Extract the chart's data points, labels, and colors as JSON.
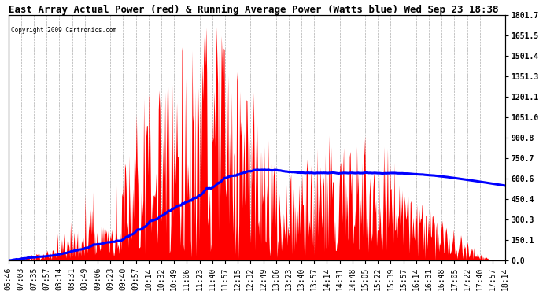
{
  "title": "East Array Actual Power (red) & Running Average Power (Watts blue) Wed Sep 23 18:38",
  "copyright": "Copyright 2009 Cartronics.com",
  "ylabel_right_ticks": [
    0.0,
    150.1,
    300.3,
    450.4,
    600.6,
    750.7,
    900.8,
    1051.0,
    1201.1,
    1351.3,
    1501.4,
    1651.5,
    1801.7
  ],
  "ymax": 1801.7,
  "ymin": 0.0,
  "x_labels": [
    "06:46",
    "07:03",
    "07:35",
    "07:57",
    "08:14",
    "08:31",
    "08:49",
    "09:06",
    "09:23",
    "09:40",
    "09:57",
    "10:14",
    "10:32",
    "10:49",
    "11:06",
    "11:23",
    "11:40",
    "11:57",
    "12:15",
    "12:32",
    "12:49",
    "13:06",
    "13:23",
    "13:40",
    "13:57",
    "14:14",
    "14:31",
    "14:48",
    "15:05",
    "15:22",
    "15:39",
    "15:57",
    "16:14",
    "16:31",
    "16:48",
    "17:05",
    "17:22",
    "17:40",
    "17:57",
    "18:14"
  ],
  "fill_color": "red",
  "line_color": "blue",
  "background_color": "#ffffff",
  "grid_color": "#999999",
  "title_fontsize": 9,
  "tick_fontsize": 7,
  "n_points": 680
}
